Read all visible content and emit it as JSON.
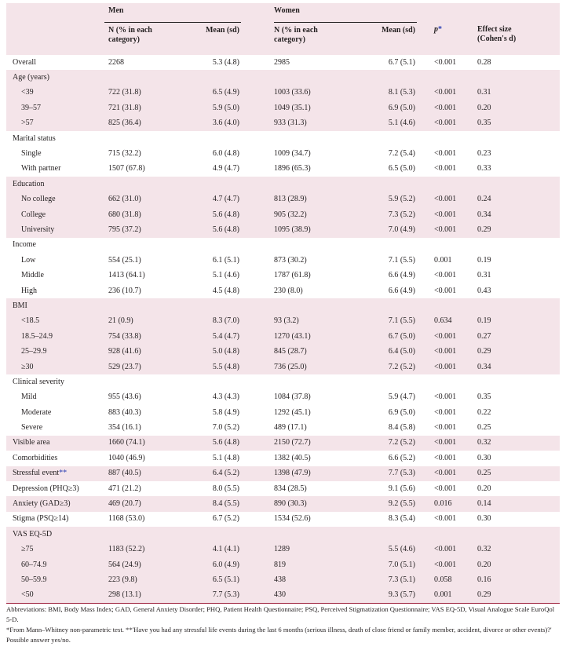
{
  "header": {
    "men": "Men",
    "women": "Women",
    "n_col": [
      "N (% in each",
      "category)"
    ],
    "mean_col": "Mean (sd)",
    "p_col": "p",
    "p_mark": "*",
    "effect_col": [
      "Effect size",
      "(Cohen's d)"
    ]
  },
  "rows": [
    {
      "type": "data",
      "pink": false,
      "indent": false,
      "label": "Overall",
      "mark": "",
      "men_n": "2268",
      "men_mean": "5.3 (4.8)",
      "women_n": "2985",
      "women_mean": "6.7 (5.1)",
      "p": "<0.001",
      "d": "0.28"
    },
    {
      "type": "group",
      "pink": true,
      "label": "Age (years)"
    },
    {
      "type": "data",
      "pink": true,
      "indent": true,
      "label": "<39",
      "mark": "",
      "men_n": "722 (31.8)",
      "men_mean": "6.5 (4.9)",
      "women_n": "1003 (33.6)",
      "women_mean": "8.1 (5.3)",
      "p": "<0.001",
      "d": "0.31"
    },
    {
      "type": "data",
      "pink": true,
      "indent": true,
      "label": "39–57",
      "mark": "",
      "men_n": "721 (31.8)",
      "men_mean": "5.9 (5.0)",
      "women_n": "1049 (35.1)",
      "women_mean": "6.9 (5.0)",
      "p": "<0.001",
      "d": "0.20"
    },
    {
      "type": "data",
      "pink": true,
      "indent": true,
      "label": ">57",
      "mark": "",
      "men_n": "825 (36.4)",
      "men_mean": "3.6 (4.0)",
      "women_n": "933 (31.3)",
      "women_mean": "5.1 (4.6)",
      "p": "<0.001",
      "d": "0.35"
    },
    {
      "type": "group",
      "pink": false,
      "label": "Marital status"
    },
    {
      "type": "data",
      "pink": false,
      "indent": true,
      "label": "Single",
      "mark": "",
      "men_n": "715 (32.2)",
      "men_mean": "6.0 (4.8)",
      "women_n": "1009 (34.7)",
      "women_mean": "7.2 (5.4)",
      "p": "<0.001",
      "d": "0.23"
    },
    {
      "type": "data",
      "pink": false,
      "indent": true,
      "label": "With partner",
      "mark": "",
      "men_n": "1507 (67.8)",
      "men_mean": "4.9 (4.7)",
      "women_n": "1896 (65.3)",
      "women_mean": "6.5 (5.0)",
      "p": "<0.001",
      "d": "0.33"
    },
    {
      "type": "group",
      "pink": true,
      "label": "Education"
    },
    {
      "type": "data",
      "pink": true,
      "indent": true,
      "label": "No college",
      "mark": "",
      "men_n": "662 (31.0)",
      "men_mean": "4.7 (4.7)",
      "women_n": "813 (28.9)",
      "women_mean": "5.9 (5.2)",
      "p": "<0.001",
      "d": "0.24"
    },
    {
      "type": "data",
      "pink": true,
      "indent": true,
      "label": "College",
      "mark": "",
      "men_n": "680 (31.8)",
      "men_mean": "5.6 (4.8)",
      "women_n": "905 (32.2)",
      "women_mean": "7.3 (5.2)",
      "p": "<0.001",
      "d": "0.34"
    },
    {
      "type": "data",
      "pink": true,
      "indent": true,
      "label": "University",
      "mark": "",
      "men_n": "795 (37.2)",
      "men_mean": "5.6 (4.8)",
      "women_n": "1095 (38.9)",
      "women_mean": "7.0 (4.9)",
      "p": "<0.001",
      "d": "0.29"
    },
    {
      "type": "group",
      "pink": false,
      "label": "Income"
    },
    {
      "type": "data",
      "pink": false,
      "indent": true,
      "label": "Low",
      "mark": "",
      "men_n": "554 (25.1)",
      "men_mean": "6.1 (5.1)",
      "women_n": "873 (30.2)",
      "women_mean": "7.1 (5.5)",
      "p": "0.001",
      "d": "0.19"
    },
    {
      "type": "data",
      "pink": false,
      "indent": true,
      "label": "Middle",
      "mark": "",
      "men_n": "1413 (64.1)",
      "men_mean": "5.1 (4.6)",
      "women_n": "1787 (61.8)",
      "women_mean": "6.6 (4.9)",
      "p": "<0.001",
      "d": "0.31"
    },
    {
      "type": "data",
      "pink": false,
      "indent": true,
      "label": "High",
      "mark": "",
      "men_n": "236 (10.7)",
      "men_mean": "4.5 (4.8)",
      "women_n": "230 (8.0)",
      "women_mean": "6.6 (4.9)",
      "p": "<0.001",
      "d": "0.43"
    },
    {
      "type": "group",
      "pink": true,
      "label": "BMI"
    },
    {
      "type": "data",
      "pink": true,
      "indent": true,
      "label": "<18.5",
      "mark": "",
      "men_n": "21 (0.9)",
      "men_mean": "8.3 (7.0)",
      "women_n": "93 (3.2)",
      "women_mean": "7.1 (5.5)",
      "p": "0.634",
      "d": "0.19"
    },
    {
      "type": "data",
      "pink": true,
      "indent": true,
      "label": "18.5–24.9",
      "mark": "",
      "men_n": "754 (33.8)",
      "men_mean": "5.4 (4.7)",
      "women_n": "1270 (43.1)",
      "women_mean": "6.7 (5.0)",
      "p": "<0.001",
      "d": "0.27"
    },
    {
      "type": "data",
      "pink": true,
      "indent": true,
      "label": "25–29.9",
      "mark": "",
      "men_n": "928 (41.6)",
      "men_mean": "5.0 (4.8)",
      "women_n": "845 (28.7)",
      "women_mean": "6.4 (5.0)",
      "p": "<0.001",
      "d": "0.29"
    },
    {
      "type": "data",
      "pink": true,
      "indent": true,
      "label": "≥30",
      "mark": "",
      "men_n": "529 (23.7)",
      "men_mean": "5.5 (4.8)",
      "women_n": "736 (25.0)",
      "women_mean": "7.2 (5.2)",
      "p": "<0.001",
      "d": "0.34"
    },
    {
      "type": "group",
      "pink": false,
      "label": "Clinical severity"
    },
    {
      "type": "data",
      "pink": false,
      "indent": true,
      "label": "Mild",
      "mark": "",
      "men_n": "955 (43.6)",
      "men_mean": "4.3 (4.3)",
      "women_n": "1084 (37.8)",
      "women_mean": "5.9 (4.7)",
      "p": "<0.001",
      "d": "0.35"
    },
    {
      "type": "data",
      "pink": false,
      "indent": true,
      "label": "Moderate",
      "mark": "",
      "men_n": "883 (40.3)",
      "men_mean": "5.8 (4.9)",
      "women_n": "1292 (45.1)",
      "women_mean": "6.9 (5.0)",
      "p": "<0.001",
      "d": "0.22"
    },
    {
      "type": "data",
      "pink": false,
      "indent": true,
      "label": "Severe",
      "mark": "",
      "men_n": "354 (16.1)",
      "men_mean": "7.0 (5.2)",
      "women_n": "489 (17.1)",
      "women_mean": "8.4 (5.8)",
      "p": "<0.001",
      "d": "0.25"
    },
    {
      "type": "data",
      "pink": true,
      "indent": false,
      "label": "Visible area",
      "mark": "",
      "men_n": "1660 (74.1)",
      "men_mean": "5.6 (4.8)",
      "women_n": "2150 (72.7)",
      "women_mean": "7.2 (5.2)",
      "p": "<0.001",
      "d": "0.32"
    },
    {
      "type": "data",
      "pink": false,
      "indent": false,
      "label": "Comorbidities",
      "mark": "",
      "men_n": "1040 (46.9)",
      "men_mean": "5.1 (4.8)",
      "women_n": "1382 (40.5)",
      "women_mean": "6.6 (5.2)",
      "p": "<0.001",
      "d": "0.30"
    },
    {
      "type": "data",
      "pink": true,
      "indent": false,
      "label": "Stressful event",
      "mark": "**",
      "men_n": "887 (40.5)",
      "men_mean": "6.4 (5.2)",
      "women_n": "1398 (47.9)",
      "women_mean": "7.7 (5.3)",
      "p": "<0.001",
      "d": "0.25"
    },
    {
      "type": "data",
      "pink": false,
      "indent": false,
      "label": "Depression (PHQ≥3)",
      "mark": "",
      "men_n": "471 (21.2)",
      "men_mean": "8.0 (5.5)",
      "women_n": "834 (28.5)",
      "women_mean": "9.1 (5.6)",
      "p": "<0.001",
      "d": "0.20"
    },
    {
      "type": "data",
      "pink": true,
      "indent": false,
      "label": "Anxiety (GAD≥3)",
      "mark": "",
      "men_n": "469 (20.7)",
      "men_mean": "8.4 (5.5)",
      "women_n": "890 (30.3)",
      "women_mean": "9.2 (5.5)",
      "p": "0.016",
      "d": "0.14"
    },
    {
      "type": "data",
      "pink": false,
      "indent": false,
      "label": "Stigma (PSQ≥14)",
      "mark": "",
      "men_n": "1168 (53.0)",
      "men_mean": "6.7 (5.2)",
      "women_n": "1534 (52.6)",
      "women_mean": "8.3 (5.4)",
      "p": "<0.001",
      "d": "0.30"
    },
    {
      "type": "group",
      "pink": true,
      "label": "VAS EQ-5D"
    },
    {
      "type": "data",
      "pink": true,
      "indent": true,
      "label": "≥75",
      "mark": "",
      "men_n": "1183 (52.2)",
      "men_mean": "4.1 (4.1)",
      "women_n": "1289",
      "women_mean": "5.5 (4.6)",
      "p": "<0.001",
      "d": "0.32"
    },
    {
      "type": "data",
      "pink": true,
      "indent": true,
      "label": "60–74.9",
      "mark": "",
      "men_n": "564 (24.9)",
      "men_mean": "6.0 (4.9)",
      "women_n": "819",
      "women_mean": "7.0 (5.1)",
      "p": "<0.001",
      "d": "0.20"
    },
    {
      "type": "data",
      "pink": true,
      "indent": true,
      "label": "50–59.9",
      "mark": "",
      "men_n": "223 (9.8)",
      "men_mean": "6.5 (5.1)",
      "women_n": "438",
      "women_mean": "7.3 (5.1)",
      "p": "0.058",
      "d": "0.16"
    },
    {
      "type": "data",
      "pink": true,
      "indent": true,
      "label": "<50",
      "mark": "",
      "men_n": "298 (13.1)",
      "men_mean": "7.7 (5.3)",
      "women_n": "430",
      "women_mean": "9.3 (5.7)",
      "p": "0.001",
      "d": "0.29"
    }
  ],
  "footnotes": {
    "abbreviations": "Abbreviations: BMI, Body Mass Index; GAD, General Anxiety Disorder; PHQ, Patient Health Questionnaire; PSQ, Perceived Stigmatization Questionnaire; VAS EQ-5D, Visual Analogue Scale EuroQol 5-D.",
    "notes": "*From Mann–Whitney non-parametric test. **'Have you had any stressful life events during the last 6 months (serious illness, death of close friend or family member, accident, divorce or other events)?' Possible answer yes/no."
  }
}
